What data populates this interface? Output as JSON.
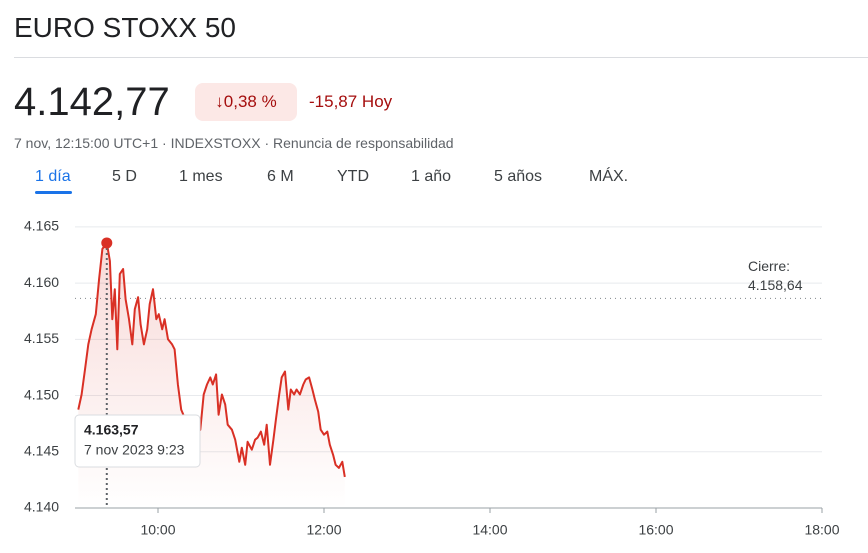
{
  "header": {
    "title": "EURO STOXX 50",
    "price": "4.142,77",
    "change_pct": "0,38 %",
    "change_abs": "-15,87 Hoy",
    "meta_time": "7 nov, 12:15:00 UTC+1",
    "meta_source": "INDEXSTOXX",
    "meta_disclaimer": "Renuncia de responsabilidad",
    "tabs": [
      "1 día",
      "5 D",
      "1 mes",
      "6 M",
      "YTD",
      "1 año",
      "5 años",
      "MÁX."
    ],
    "active_tab": "1 día"
  },
  "chart_data": {
    "type": "line",
    "color": "#d93025",
    "grid": true,
    "x": [
      9.04,
      9.08,
      9.12,
      9.16,
      9.2,
      9.25,
      9.29,
      9.33,
      9.383,
      9.42,
      9.45,
      9.48,
      9.51,
      9.54,
      9.58,
      9.61,
      9.65,
      9.69,
      9.72,
      9.76,
      9.79,
      9.83,
      9.87,
      9.9,
      9.94,
      9.98,
      10.01,
      10.05,
      10.08,
      10.12,
      10.17,
      10.2,
      10.24,
      10.28,
      10.33,
      10.39,
      10.46,
      10.51,
      10.55,
      10.59,
      10.63,
      10.66,
      10.7,
      10.73,
      10.77,
      10.81,
      10.84,
      10.89,
      10.93,
      10.98,
      11.01,
      11.05,
      11.08,
      11.13,
      11.17,
      11.2,
      11.24,
      11.28,
      11.31,
      11.35,
      11.39,
      11.42,
      11.46,
      11.49,
      11.53,
      11.57,
      11.6,
      11.64,
      11.67,
      11.71,
      11.75,
      11.78,
      11.82,
      11.86,
      11.89,
      11.93,
      11.96,
      12.0,
      12.04,
      12.07,
      12.11,
      12.14,
      12.18,
      12.22,
      12.25
    ],
    "values": [
      4148.75,
      4150.09,
      4152.32,
      4154.55,
      4155.89,
      4157.23,
      4160.36,
      4163.04,
      4163.57,
      4161.96,
      4156.79,
      4159.46,
      4154.11,
      4160.8,
      4161.25,
      4158.57,
      4156.79,
      4154.55,
      4157.68,
      4158.75,
      4156.34,
      4154.55,
      4155.89,
      4158.13,
      4159.46,
      4156.79,
      4157.23,
      4155.89,
      4156.79,
      4155.0,
      4154.55,
      4154.11,
      4150.98,
      4148.75,
      4147.86,
      4146.96,
      4146.52,
      4146.96,
      4150.09,
      4150.98,
      4151.61,
      4150.98,
      4151.88,
      4148.3,
      4150.09,
      4149.2,
      4147.41,
      4146.96,
      4146.07,
      4144.11,
      4145.36,
      4143.84,
      4145.89,
      4145.18,
      4146.07,
      4146.25,
      4146.79,
      4145.63,
      4147.41,
      4143.84,
      4146.07,
      4147.86,
      4150.09,
      4151.61,
      4152.14,
      4148.75,
      4150.54,
      4150.09,
      4150.54,
      4150.09,
      4150.98,
      4151.43,
      4151.61,
      4150.54,
      4149.64,
      4148.57,
      4146.96,
      4146.52,
      4146.79,
      4145.63,
      4144.73,
      4143.84,
      4143.57,
      4144.11,
      4142.77
    ],
    "xlim": [
      9,
      18
    ],
    "xticks": [
      {
        "value": 10,
        "label": "10:00"
      },
      {
        "value": 12,
        "label": "12:00"
      },
      {
        "value": 14,
        "label": "14:00"
      },
      {
        "value": 16,
        "label": "16:00"
      },
      {
        "value": 18,
        "label": "18:00"
      }
    ],
    "ylim": [
      4140,
      4166.5
    ],
    "yticks": [
      {
        "value": 4140,
        "label": "4.140"
      },
      {
        "value": 4145,
        "label": "4.145"
      },
      {
        "value": 4150,
        "label": "4.150"
      },
      {
        "value": 4155,
        "label": "4.155"
      },
      {
        "value": 4160,
        "label": "4.160"
      },
      {
        "value": 4165,
        "label": "4.165"
      }
    ],
    "reference": {
      "label": "Cierre:",
      "value": 4158.64,
      "value_label": "4.158,64"
    },
    "tooltip": {
      "x": 9.383,
      "value": 4163.57,
      "label": "4.163,57",
      "time": "7 nov 2023 9:23"
    }
  }
}
